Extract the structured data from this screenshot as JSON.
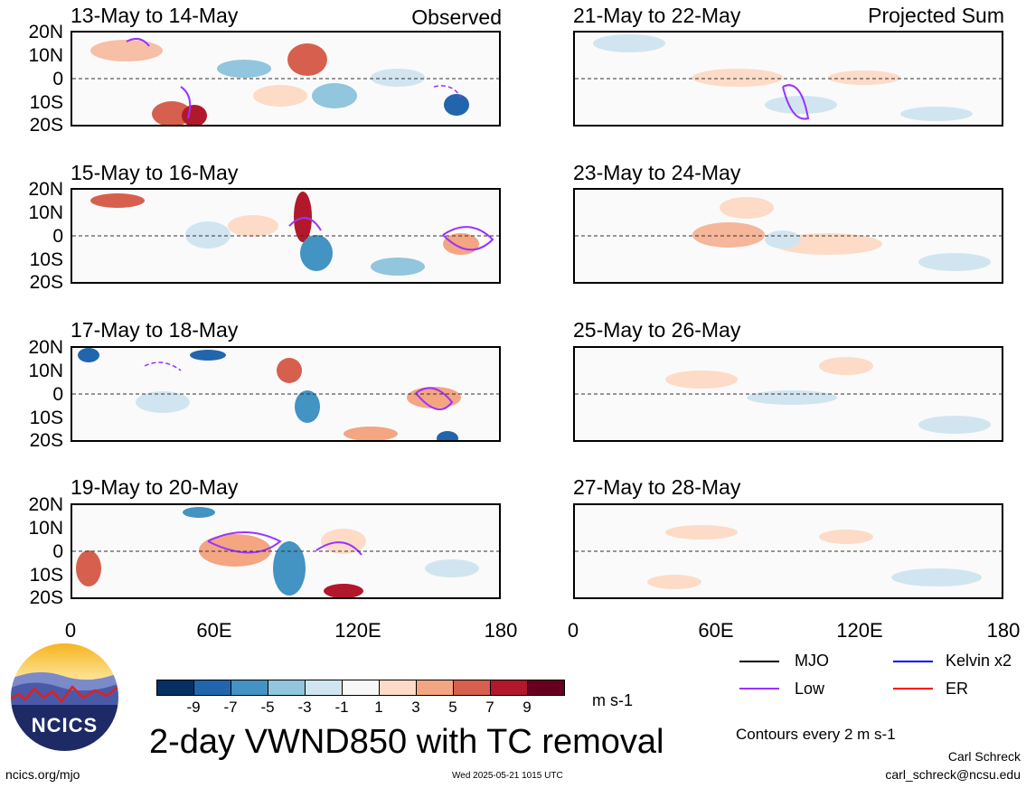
{
  "corner_labels": {
    "left": "Observed",
    "right": "Projected Sum"
  },
  "panels": [
    {
      "title": "13-May to 14-May",
      "col": "observed"
    },
    {
      "title": "15-May to 16-May",
      "col": "observed"
    },
    {
      "title": "17-May to 18-May",
      "col": "observed"
    },
    {
      "title": "19-May to 20-May",
      "col": "observed"
    },
    {
      "title": "21-May to 22-May",
      "col": "projected"
    },
    {
      "title": "23-May to 24-May",
      "col": "projected"
    },
    {
      "title": "25-May to 26-May",
      "col": "projected"
    },
    {
      "title": "27-May to 28-May",
      "col": "projected"
    }
  ],
  "lat_labels": [
    "20N",
    "10N",
    "0",
    "10S",
    "20S"
  ],
  "lon_labels": [
    "0",
    "60E",
    "120E",
    "180"
  ],
  "colorbar": {
    "colors": [
      "#053061",
      "#2166ac",
      "#4393c3",
      "#92c5de",
      "#d1e5f0",
      "#f7f7f7",
      "#fddbc7",
      "#f4a582",
      "#d6604d",
      "#b2182b",
      "#67001f"
    ],
    "ticks": [
      "-9",
      "-7",
      "-5",
      "-3",
      "-1",
      "1",
      "3",
      "5",
      "7",
      "9"
    ],
    "unit": "m s-1"
  },
  "legend": {
    "items": [
      {
        "label": "MJO",
        "color": "#000000"
      },
      {
        "label": "Kelvin x2",
        "color": "#0000ff"
      },
      {
        "label": "Low",
        "color": "#9933ff"
      },
      {
        "label": "ER",
        "color": "#ff0000"
      }
    ],
    "contours_note": "Contours every 2 m s-1"
  },
  "main_title": "2-day VWND850 with TC removal",
  "logo_text": "NCICS",
  "footer": {
    "url": "ncics.org/mjo",
    "timestamp": "Wed 2025-05-21 1015 UTC",
    "author": "Carl Schreck",
    "email": "carl_schreck@ncsu.edu"
  }
}
